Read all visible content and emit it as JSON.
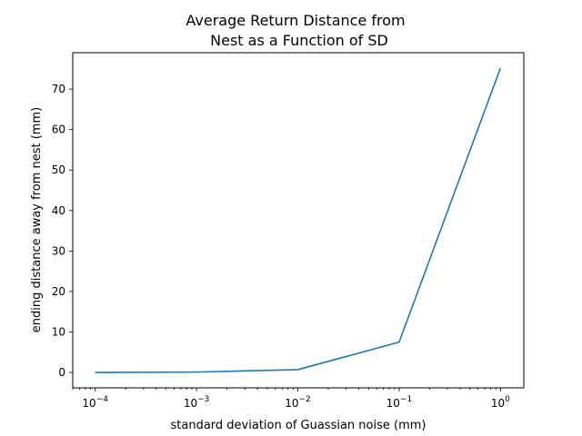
{
  "chart_data": {
    "type": "line",
    "title": [
      "Average Return Distance from",
      "Nest as a Function of SD"
    ],
    "xlabel": "standard deviation of Guassian noise (mm)",
    "ylabel": "ending distance away from nest (mm)",
    "x_scale": "log",
    "xlim": [
      6e-05,
      1.7
    ],
    "ylim": [
      -3.8,
      79.0
    ],
    "grid": false,
    "line_color": "#1f77b4",
    "x_ticks": [
      {
        "base": "10",
        "exp": "−4",
        "value": 0.0001
      },
      {
        "base": "10",
        "exp": "−3",
        "value": 0.001
      },
      {
        "base": "10",
        "exp": "−2",
        "value": 0.01
      },
      {
        "base": "10",
        "exp": "−1",
        "value": 0.1
      },
      {
        "base": "10",
        "exp": "0",
        "value": 1
      }
    ],
    "y_ticks": [
      0,
      10,
      20,
      30,
      40,
      50,
      60,
      70
    ],
    "series": [
      {
        "x": [
          0.0001,
          0.001,
          0.01,
          0.1,
          1
        ],
        "y": [
          0.0,
          0.1,
          0.7,
          7.5,
          75.2
        ]
      }
    ]
  }
}
